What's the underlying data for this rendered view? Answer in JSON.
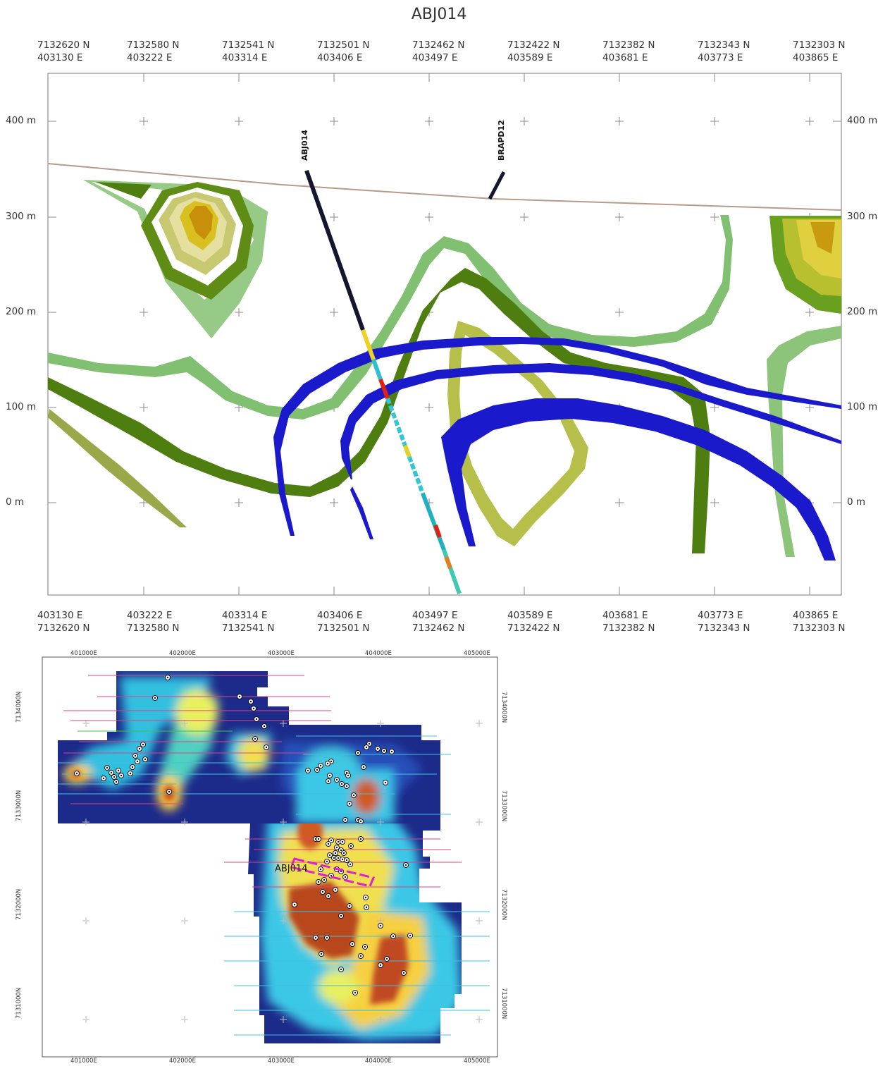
{
  "section": {
    "title": "ABJ014",
    "top_coords": [
      {
        "n": "7132620 N",
        "e": "403130 E"
      },
      {
        "n": "7132580 N",
        "e": "403222 E"
      },
      {
        "n": "7132541 N",
        "e": "403314 E"
      },
      {
        "n": "7132501 N",
        "e": "403406 E"
      },
      {
        "n": "7132462 N",
        "e": "403497 E"
      },
      {
        "n": "7132422 N",
        "e": "403589 E"
      },
      {
        "n": "7132382 N",
        "e": "403681 E"
      },
      {
        "n": "7132343 N",
        "e": "403773 E"
      },
      {
        "n": "7132303 N",
        "e": "403865 E"
      }
    ],
    "bottom_coords": [
      {
        "e": "403130 E",
        "n": "7132620 N"
      },
      {
        "e": "403222 E",
        "n": "7132580 N"
      },
      {
        "e": "403314 E",
        "n": "7132541 N"
      },
      {
        "e": "403406 E",
        "n": "7132501 N"
      },
      {
        "e": "403497 E",
        "n": "7132462 N"
      },
      {
        "e": "403589 E",
        "n": "7132422 N"
      },
      {
        "e": "403681 E",
        "n": "7132382 N"
      },
      {
        "e": "403773 E",
        "n": "7132343 N"
      },
      {
        "e": "403865 E",
        "n": "7132303 N"
      }
    ],
    "elevations": [
      "400 m",
      "300 m",
      "200 m",
      "100 m",
      "0 m"
    ],
    "drillholes": [
      {
        "name": "ABJ014"
      },
      {
        "name": "BRAPD12"
      }
    ],
    "colors": {
      "ore_light_green": "#7fbf6a",
      "ore_dark_green": "#4e7d10",
      "ore_olive": "#b5bf4a",
      "fault_blue": "#1a1acc",
      "hole_trace": "#151530",
      "terrain": "#b89a8a"
    }
  },
  "map": {
    "x_ticks": [
      "401000E",
      "402000E",
      "403000E",
      "404000E",
      "405000E"
    ],
    "y_ticks": [
      "7134000N",
      "7133000N",
      "7132000N",
      "7131000N"
    ],
    "hole_label": "ABJ014",
    "colors": {
      "low": "#1c2a8a",
      "mid": "#33c8e8",
      "high": "#ffe040",
      "peak": "#b8461f",
      "section_box": "#e020d0"
    }
  }
}
